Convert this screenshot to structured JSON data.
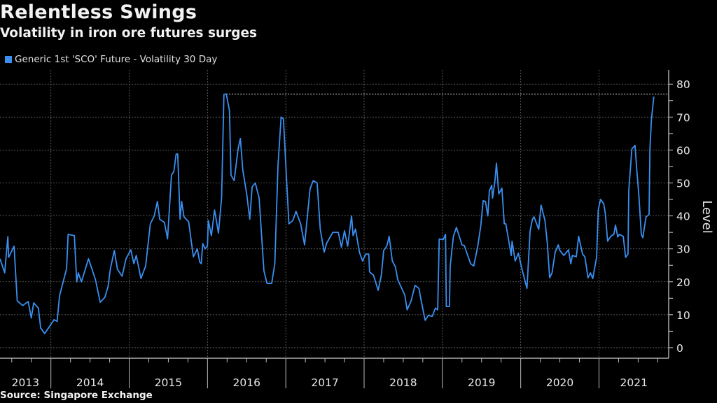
{
  "header": {
    "title": "Relentless Swings",
    "subtitle": "Volatility in iron ore futures surges"
  },
  "footer": {
    "source": "Source: Singapore Exchange"
  },
  "colors": {
    "background": "#000000",
    "series": "#3a8ff0",
    "grid": "#6a6a6a",
    "text": "#e6e6e6"
  },
  "chart_data": {
    "type": "line",
    "title": "Relentless Swings",
    "subtitle": "Volatility in iron ore futures surges",
    "ylabel": "Level",
    "xlabel": "",
    "x_unit": "year (decimal)",
    "xlim": [
      2013.35,
      2021.89
    ],
    "ylim": [
      -3.2,
      84.3
    ],
    "y_axis_side": "right",
    "y_ticks": [
      0,
      10,
      20,
      30,
      40,
      50,
      60,
      70,
      80
    ],
    "x_ticks": [
      "2013",
      "2014",
      "2015",
      "2016",
      "2017",
      "2018",
      "2019",
      "2020",
      "2021"
    ],
    "grid": true,
    "legend_position": "top-left",
    "reference_line": "dotted horizontal line at series peak",
    "series": [
      {
        "name": "Generic 1st 'SCO' Future - Volatility 30 Day",
        "color": "#3a8ff0",
        "points": [
          [
            2013.35,
            27
          ],
          [
            2013.41,
            22.7
          ],
          [
            2013.45,
            33.7
          ],
          [
            2013.46,
            27.4
          ],
          [
            2013.53,
            30.8
          ],
          [
            2013.57,
            14.2
          ],
          [
            2013.64,
            12.8
          ],
          [
            2013.71,
            14
          ],
          [
            2013.75,
            9
          ],
          [
            2013.78,
            13.6
          ],
          [
            2013.84,
            12
          ],
          [
            2013.87,
            6
          ],
          [
            2013.92,
            4.3
          ],
          [
            2013.97,
            6
          ],
          [
            2014.04,
            8.5
          ],
          [
            2014.08,
            8
          ],
          [
            2014.11,
            15.7
          ],
          [
            2014.2,
            24
          ],
          [
            2014.22,
            34.4
          ],
          [
            2014.3,
            34
          ],
          [
            2014.33,
            20
          ],
          [
            2014.35,
            22.7
          ],
          [
            2014.39,
            20
          ],
          [
            2014.48,
            27
          ],
          [
            2014.57,
            20.6
          ],
          [
            2014.63,
            13.8
          ],
          [
            2014.69,
            15.3
          ],
          [
            2014.73,
            18.5
          ],
          [
            2014.76,
            24
          ],
          [
            2014.81,
            29.5
          ],
          [
            2014.85,
            23.8
          ],
          [
            2014.91,
            21.7
          ],
          [
            2014.96,
            27
          ],
          [
            2015.02,
            29.7
          ],
          [
            2015.06,
            25.5
          ],
          [
            2015.09,
            28
          ],
          [
            2015.15,
            21
          ],
          [
            2015.21,
            24.8
          ],
          [
            2015.27,
            37.6
          ],
          [
            2015.32,
            40
          ],
          [
            2015.36,
            44.4
          ],
          [
            2015.39,
            39
          ],
          [
            2015.45,
            38
          ],
          [
            2015.49,
            33
          ],
          [
            2015.54,
            52.4
          ],
          [
            2015.57,
            53.5
          ],
          [
            2015.6,
            58.8
          ],
          [
            2015.62,
            58.8
          ],
          [
            2015.65,
            39
          ],
          [
            2015.67,
            44.4
          ],
          [
            2015.7,
            39.7
          ],
          [
            2015.76,
            38.2
          ],
          [
            2015.79,
            32.7
          ],
          [
            2015.82,
            27.6
          ],
          [
            2015.87,
            30
          ],
          [
            2015.9,
            26
          ],
          [
            2015.92,
            25.5
          ],
          [
            2015.94,
            31.6
          ],
          [
            2015.97,
            30
          ],
          [
            2016.0,
            31
          ],
          [
            2016.01,
            38.6
          ],
          [
            2016.05,
            34
          ],
          [
            2016.09,
            41.8
          ],
          [
            2016.14,
            34.8
          ],
          [
            2016.18,
            45.6
          ],
          [
            2016.21,
            76.9
          ],
          [
            2016.24,
            77
          ],
          [
            2016.28,
            72
          ],
          [
            2016.3,
            52.4
          ],
          [
            2016.34,
            50.7
          ],
          [
            2016.39,
            60.3
          ],
          [
            2016.42,
            63.5
          ],
          [
            2016.45,
            54
          ],
          [
            2016.5,
            46.7
          ],
          [
            2016.54,
            39
          ],
          [
            2016.57,
            48.8
          ],
          [
            2016.61,
            50
          ],
          [
            2016.66,
            45.4
          ],
          [
            2016.72,
            23.4
          ],
          [
            2016.76,
            19.5
          ],
          [
            2016.82,
            19.5
          ],
          [
            2016.86,
            25.5
          ],
          [
            2016.9,
            55.2
          ],
          [
            2016.94,
            70
          ],
          [
            2016.97,
            69.4
          ],
          [
            2017.01,
            51
          ],
          [
            2017.04,
            37.6
          ],
          [
            2017.09,
            38.6
          ],
          [
            2017.13,
            41.4
          ],
          [
            2017.19,
            37.6
          ],
          [
            2017.24,
            31.2
          ],
          [
            2017.31,
            48.2
          ],
          [
            2017.35,
            50.7
          ],
          [
            2017.4,
            50
          ],
          [
            2017.44,
            35.9
          ],
          [
            2017.49,
            29
          ],
          [
            2017.52,
            31.6
          ],
          [
            2017.6,
            35
          ],
          [
            2017.67,
            35
          ],
          [
            2017.71,
            30.5
          ],
          [
            2017.75,
            35.5
          ],
          [
            2017.79,
            30.8
          ],
          [
            2017.84,
            40
          ],
          [
            2017.86,
            34
          ],
          [
            2017.89,
            36
          ],
          [
            2017.94,
            29
          ],
          [
            2017.98,
            26.3
          ],
          [
            2018.02,
            28.4
          ],
          [
            2018.06,
            28.4
          ],
          [
            2018.07,
            23
          ],
          [
            2018.12,
            22
          ],
          [
            2018.18,
            17.4
          ],
          [
            2018.22,
            22
          ],
          [
            2018.25,
            29.5
          ],
          [
            2018.29,
            30.8
          ],
          [
            2018.32,
            33.8
          ],
          [
            2018.36,
            26.3
          ],
          [
            2018.4,
            24.5
          ],
          [
            2018.43,
            20.6
          ],
          [
            2018.52,
            16
          ],
          [
            2018.55,
            11.5
          ],
          [
            2018.6,
            14.2
          ],
          [
            2018.65,
            18.9
          ],
          [
            2018.7,
            18
          ],
          [
            2018.73,
            14.2
          ],
          [
            2018.78,
            8.3
          ],
          [
            2018.82,
            9.8
          ],
          [
            2018.87,
            9.5
          ],
          [
            2018.91,
            12
          ],
          [
            2018.94,
            11.5
          ],
          [
            2018.96,
            33
          ],
          [
            2019.01,
            32.8
          ],
          [
            2019.04,
            34.4
          ],
          [
            2019.05,
            12.5
          ],
          [
            2019.09,
            12.5
          ],
          [
            2019.1,
            24.8
          ],
          [
            2019.14,
            33.8
          ],
          [
            2019.18,
            36.5
          ],
          [
            2019.25,
            31.2
          ],
          [
            2019.28,
            31
          ],
          [
            2019.36,
            25.5
          ],
          [
            2019.4,
            24.8
          ],
          [
            2019.45,
            30.5
          ],
          [
            2019.49,
            36.9
          ],
          [
            2019.52,
            44.6
          ],
          [
            2019.55,
            44.4
          ],
          [
            2019.58,
            40
          ],
          [
            2019.6,
            47.6
          ],
          [
            2019.63,
            49.3
          ],
          [
            2019.64,
            45.4
          ],
          [
            2019.67,
            50.3
          ],
          [
            2019.69,
            56
          ],
          [
            2019.72,
            46.7
          ],
          [
            2019.76,
            48.4
          ],
          [
            2019.79,
            37.6
          ],
          [
            2019.81,
            37.6
          ],
          [
            2019.88,
            28
          ],
          [
            2019.89,
            32.3
          ],
          [
            2019.93,
            26.3
          ],
          [
            2019.97,
            28.7
          ],
          [
            2020.01,
            24.4
          ],
          [
            2020.04,
            21.7
          ],
          [
            2020.08,
            18
          ],
          [
            2020.12,
            35.5
          ],
          [
            2020.15,
            39
          ],
          [
            2020.17,
            39.7
          ],
          [
            2020.23,
            35.9
          ],
          [
            2020.26,
            43.3
          ],
          [
            2020.31,
            38.6
          ],
          [
            2020.34,
            31.6
          ],
          [
            2020.37,
            21.2
          ],
          [
            2020.4,
            22.7
          ],
          [
            2020.44,
            29
          ],
          [
            2020.48,
            31.2
          ],
          [
            2020.5,
            29.5
          ],
          [
            2020.55,
            28
          ],
          [
            2020.61,
            29.7
          ],
          [
            2020.64,
            25.5
          ],
          [
            2020.66,
            28
          ],
          [
            2020.71,
            27.6
          ],
          [
            2020.74,
            33.8
          ],
          [
            2020.79,
            28.4
          ],
          [
            2020.82,
            27.6
          ],
          [
            2020.86,
            21.2
          ],
          [
            2020.89,
            22.7
          ],
          [
            2020.92,
            21
          ],
          [
            2020.97,
            27.4
          ],
          [
            2020.99,
            41.8
          ],
          [
            2021.02,
            45
          ],
          [
            2021.06,
            43.7
          ],
          [
            2021.08,
            40.8
          ],
          [
            2021.11,
            32.3
          ],
          [
            2021.15,
            33.8
          ],
          [
            2021.19,
            34.4
          ],
          [
            2021.21,
            37.2
          ],
          [
            2021.24,
            33.6
          ],
          [
            2021.26,
            34.4
          ],
          [
            2021.31,
            33.8
          ],
          [
            2021.34,
            27.4
          ],
          [
            2021.37,
            28.4
          ],
          [
            2021.38,
            47.6
          ],
          [
            2021.42,
            60.3
          ],
          [
            2021.46,
            61.4
          ],
          [
            2021.48,
            54.6
          ],
          [
            2021.51,
            46
          ],
          [
            2021.54,
            34.4
          ],
          [
            2021.56,
            33.4
          ],
          [
            2021.6,
            39.7
          ],
          [
            2021.64,
            40.4
          ],
          [
            2021.65,
            60.3
          ],
          [
            2021.67,
            69.4
          ],
          [
            2021.7,
            76.2
          ]
        ]
      }
    ]
  }
}
